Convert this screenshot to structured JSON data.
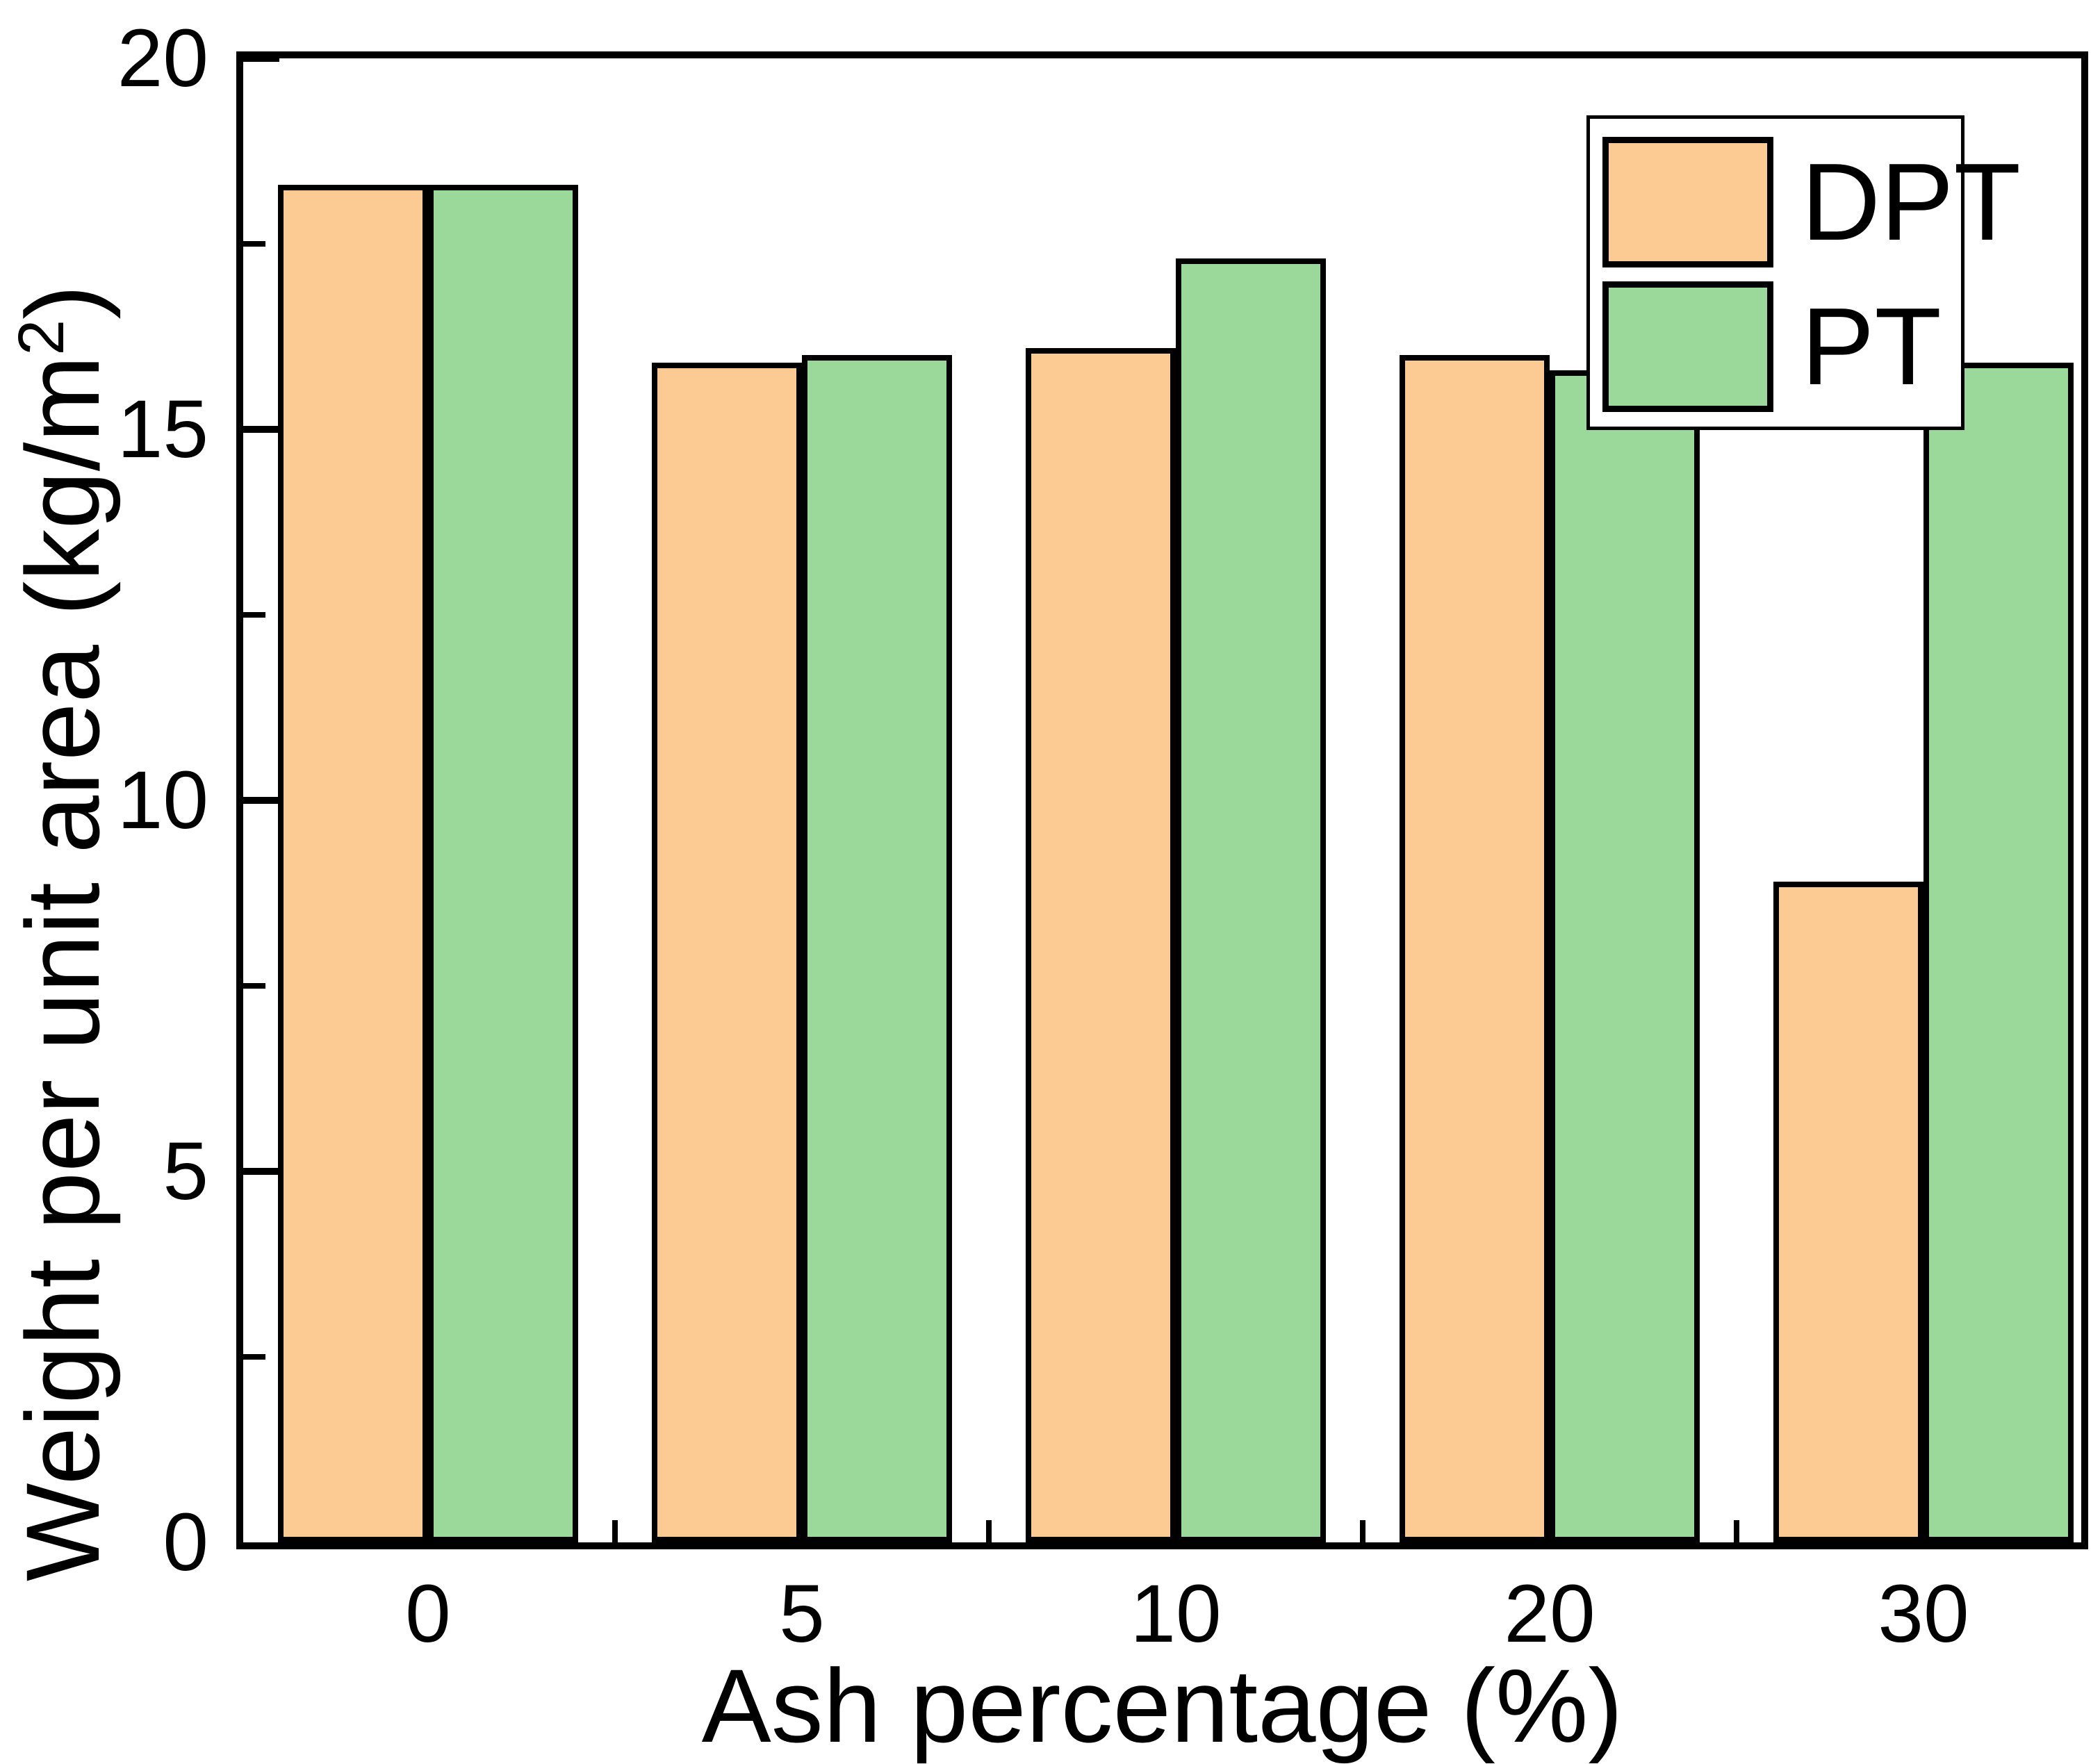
{
  "chart_data": {
    "type": "bar",
    "title": "",
    "xlabel": "Ash percentage (%)",
    "ylabel": "Weight per unit area (kg/m²)",
    "ylabel_prefix": "Weight per unit area (kg/m",
    "ylabel_sup": "2",
    "ylabel_suffix": ")",
    "categories": [
      "0",
      "5",
      "10",
      "20",
      "30"
    ],
    "series": [
      {
        "name": "DPT",
        "color": "#fccb94",
        "values": [
          18.3,
          15.9,
          16.1,
          16.0,
          8.9
        ]
      },
      {
        "name": "PT",
        "color": "#9ad999",
        "values": [
          18.3,
          16.0,
          17.3,
          15.8,
          15.9
        ]
      }
    ],
    "ylim": [
      0,
      20
    ],
    "y_major_ticks": [
      0,
      5,
      10,
      15,
      20
    ],
    "y_tick_labels": [
      "0",
      "5",
      "10",
      "15",
      "20"
    ],
    "y_minor_ticks": [
      2.5,
      7.5,
      12.5,
      17.5
    ],
    "bar_edge_color": "#000000",
    "background_color": "#ffffff",
    "grid": false,
    "legend_position": "top-right",
    "tick_direction": "in"
  }
}
